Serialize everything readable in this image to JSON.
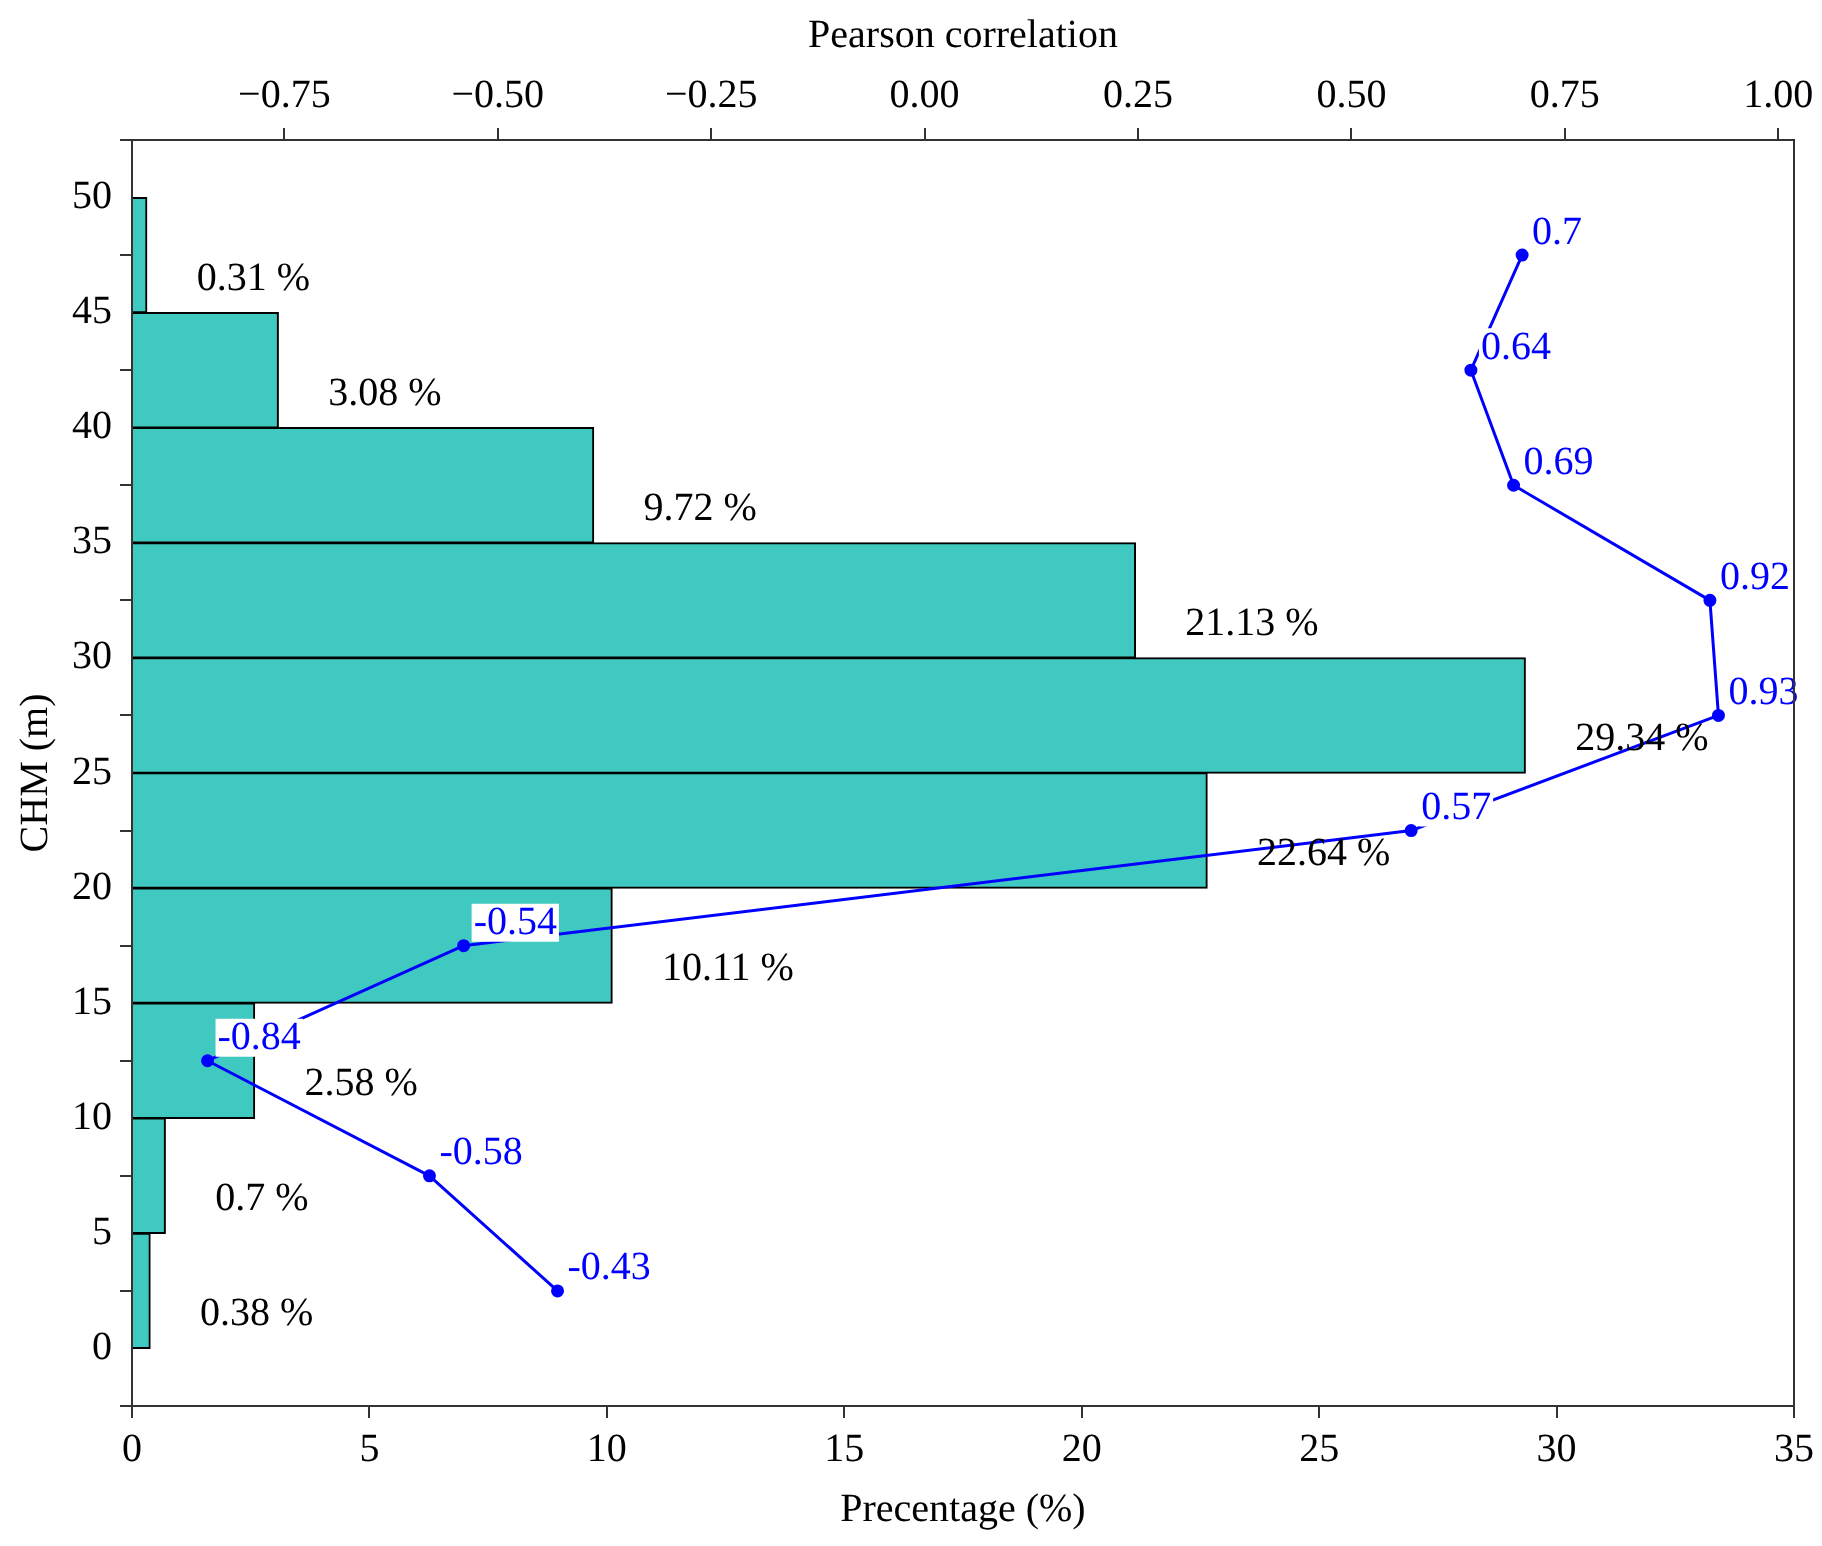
{
  "chart_data": {
    "type": "histogram",
    "orientation": "horizontal",
    "xlabel": "Precentage (%)",
    "ylabel": "CHM (m)",
    "x2label": "Pearson correlation",
    "xlim": [
      0,
      35
    ],
    "xticks": [
      0,
      5,
      10,
      15,
      20,
      25,
      30,
      35
    ],
    "ylim": [
      -2.5,
      52.5
    ],
    "yticks": [
      0,
      5,
      10,
      15,
      20,
      25,
      30,
      35,
      40,
      45,
      50
    ],
    "x2lim": [
      -0.9285,
      1.0185
    ],
    "x2ticks": [
      {
        "value": -0.75,
        "label": "−0.75"
      },
      {
        "value": -0.5,
        "label": "−0.50"
      },
      {
        "value": -0.25,
        "label": "−0.25"
      },
      {
        "value": 0,
        "label": "0.00"
      },
      {
        "value": 0.25,
        "label": "0.25"
      },
      {
        "value": 0.5,
        "label": "0.50"
      },
      {
        "value": 0.75,
        "label": "0.75"
      },
      {
        "value": 1,
        "label": "1.00"
      }
    ],
    "grid": false,
    "legend": false,
    "series": [
      {
        "color": "#40c9c0",
        "bins": [
          0,
          5,
          10,
          15,
          20,
          25,
          30,
          35,
          40,
          45,
          50
        ],
        "values": [
          0.38,
          0.7,
          2.58,
          10.11,
          22.64,
          29.34,
          21.13,
          9.72,
          3.08,
          0.31
        ],
        "value_labels": [
          "0.38 %",
          "0.7 %",
          "2.58 %",
          "10.11 %",
          "22.64 %",
          "29.34 %",
          "21.13 %",
          "9.72 %",
          "3.08 %",
          "0.31 %"
        ]
      },
      {
        "type": "line",
        "axis": "x2",
        "color": "#0000ff",
        "marker": "circle",
        "data_labels": true,
        "x": [
          2.5,
          7.5,
          12.5,
          17.5,
          22.5,
          27.5,
          32.5,
          37.5,
          42.5,
          47.5
        ],
        "values": [
          -0.43,
          -0.58,
          -0.84,
          -0.54,
          0.57,
          0.93,
          0.92,
          0.69,
          0.64,
          0.7
        ]
      }
    ]
  }
}
